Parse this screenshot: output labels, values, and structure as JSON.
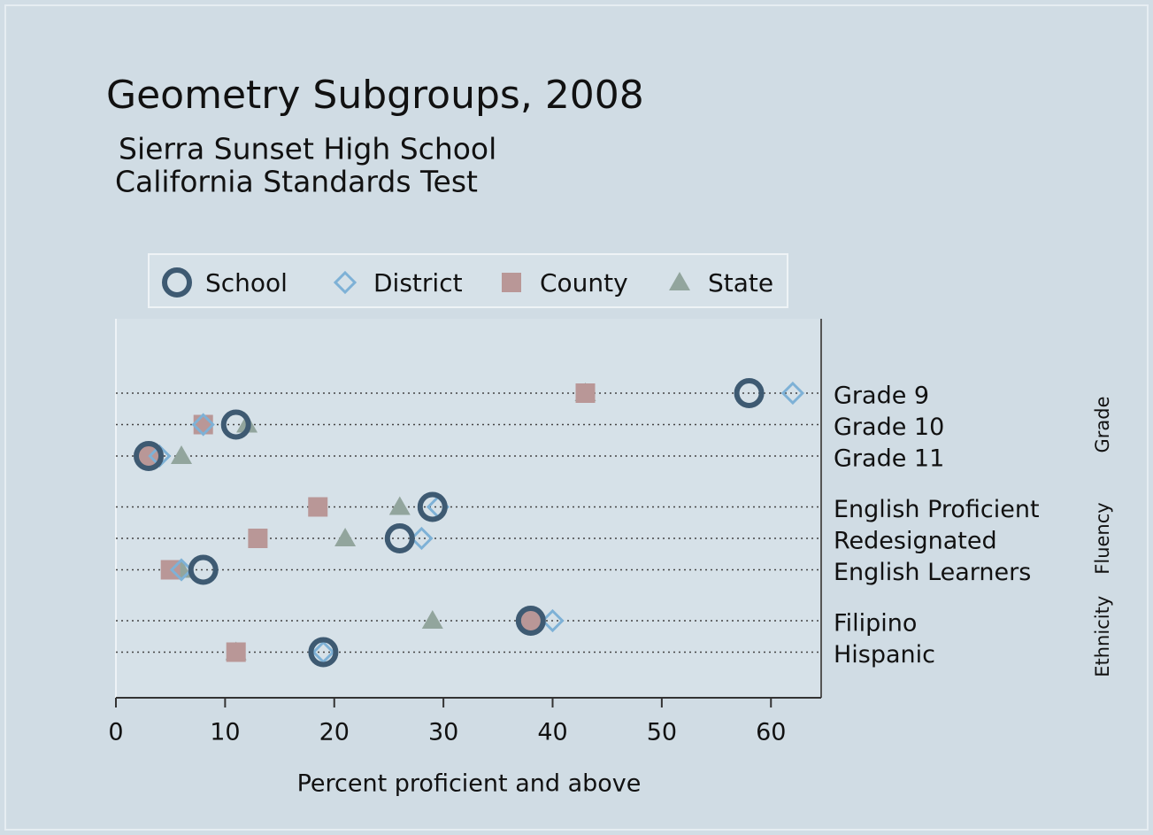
{
  "chart_data": {
    "type": "dot",
    "title": "Geometry Subgroups, 2008",
    "subtitle": [
      "Sierra Sunset High School",
      "California Standards Test"
    ],
    "x_label": "Percent proficient and above",
    "groups": [
      {
        "label": "Grade",
        "categories": [
          "Grade 9",
          "Grade 10",
          "Grade 11"
        ]
      },
      {
        "label": "Fluency",
        "categories": [
          "English Proficient",
          "Redesignated",
          "English Learners"
        ]
      },
      {
        "label": "Ethnicity",
        "categories": [
          "Filipino",
          "Hispanic"
        ]
      }
    ],
    "series": [
      {
        "name": "School",
        "color": "#3e5a72",
        "marker": "ring",
        "values": [
          58,
          11,
          3,
          29,
          26,
          8,
          38,
          19
        ]
      },
      {
        "name": "District",
        "color": "#7eb1d6",
        "marker": "diamond",
        "values": [
          62,
          8,
          4,
          29.5,
          28,
          6,
          40,
          19
        ]
      },
      {
        "name": "County",
        "color": "#b99797",
        "marker": "square",
        "values": [
          43,
          8,
          3,
          18.5,
          13,
          5,
          38,
          11
        ]
      },
      {
        "name": "State",
        "color": "#92a59d",
        "marker": "triangle",
        "values": [
          43,
          12,
          6,
          26,
          21,
          6,
          29,
          11
        ]
      }
    ],
    "xlim": [
      0,
      64.6
    ],
    "xticks": [
      0,
      10,
      20,
      30,
      40,
      50,
      60
    ],
    "grid": true
  }
}
